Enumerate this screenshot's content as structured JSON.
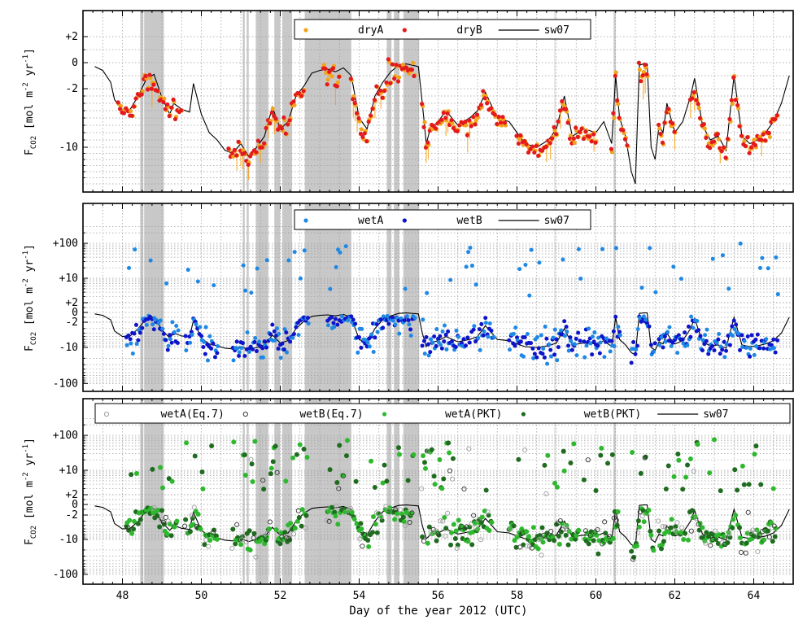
{
  "chart_data": {
    "type": "scatter",
    "xlabel": "Day of the year 2012 (UTC)",
    "xlim": [
      47.0,
      65.0
    ],
    "x_ticks": [
      48,
      50,
      52,
      54,
      56,
      58,
      60,
      62,
      64
    ],
    "shaded_intervals": [
      [
        48.45,
        48.53
      ],
      [
        48.55,
        49.05
      ],
      [
        51.05,
        51.1
      ],
      [
        51.15,
        51.2
      ],
      [
        51.38,
        51.7
      ],
      [
        51.85,
        52.0
      ],
      [
        52.05,
        52.3
      ],
      [
        52.62,
        53.8
      ],
      [
        54.7,
        54.82
      ],
      [
        54.88,
        55.02
      ],
      [
        55.12,
        55.52
      ],
      [
        58.95,
        58.97
      ],
      [
        60.45,
        60.5
      ]
    ],
    "panels": [
      {
        "name": "top",
        "ylabel_parts": [
          "F",
          "CO2",
          " [mol m",
          "-2",
          " yr",
          "-1",
          "]"
        ],
        "y_ticks": [
          {
            "v": 2,
            "label": "+2"
          },
          {
            "v": 0,
            "label": "0"
          },
          {
            "v": -2,
            "label": "-2"
          },
          {
            "v": -10,
            "label": "-10"
          }
        ],
        "legend": [
          {
            "label": "dryA",
            "kind": "dot",
            "color": "#f5a31a"
          },
          {
            "label": "dryB",
            "kind": "dot",
            "color": "#e31a1c"
          },
          {
            "label": "sw07",
            "kind": "line",
            "color": "#000000"
          }
        ]
      },
      {
        "name": "middle",
        "ylabel_parts": [
          "F",
          "CO2",
          " [mol m",
          "-2",
          " yr",
          "-1",
          "]"
        ],
        "y_ticks": [
          {
            "v": 100,
            "label": "+100"
          },
          {
            "v": 10,
            "label": "+10"
          },
          {
            "v": 2,
            "label": "+2"
          },
          {
            "v": 0,
            "label": "0"
          },
          {
            "v": -2,
            "label": "-2"
          },
          {
            "v": -10,
            "label": "-10"
          },
          {
            "v": -100,
            "label": "-100"
          }
        ],
        "legend": [
          {
            "label": "wetA",
            "kind": "dot",
            "color": "#1e88e5"
          },
          {
            "label": "wetB",
            "kind": "dot",
            "color": "#0d14c9"
          },
          {
            "label": "sw07",
            "kind": "line",
            "color": "#000000"
          }
        ]
      },
      {
        "name": "bottom",
        "ylabel_parts": [
          "F",
          "CO2",
          " [mol m",
          "-2",
          " yr",
          "-1",
          "]"
        ],
        "y_ticks": [
          {
            "v": 100,
            "label": "+100"
          },
          {
            "v": 10,
            "label": "+10"
          },
          {
            "v": 2,
            "label": "+2"
          },
          {
            "v": 0,
            "label": "0"
          },
          {
            "v": -2,
            "label": "-2"
          },
          {
            "v": -10,
            "label": "-10"
          },
          {
            "v": -100,
            "label": "-100"
          }
        ],
        "legend": [
          {
            "label": "wetA(Eq.7)",
            "kind": "ring",
            "color": "#9e9e9e"
          },
          {
            "label": "wetB(Eq.7)",
            "kind": "ring",
            "color": "#333333"
          },
          {
            "label": "wetA(PKT)",
            "kind": "dot",
            "color": "#2eb82e"
          },
          {
            "label": "wetB(PKT)",
            "kind": "dot",
            "color": "#1f6b1f"
          },
          {
            "label": "sw07",
            "kind": "line",
            "color": "#000000"
          }
        ]
      }
    ],
    "sw07": {
      "name": "sw07",
      "x": [
        47.3,
        47.5,
        47.7,
        47.8,
        48.0,
        48.2,
        48.4,
        48.6,
        48.8,
        49.0,
        49.2,
        49.3,
        49.5,
        49.7,
        49.8,
        50.0,
        50.2,
        50.4,
        50.6,
        50.8,
        51.0,
        51.2,
        51.4,
        51.6,
        51.8,
        52.0,
        52.2,
        52.4,
        52.6,
        52.8,
        53.0,
        53.2,
        53.4,
        53.6,
        53.8,
        54.0,
        54.2,
        54.4,
        54.6,
        54.8,
        55.0,
        55.2,
        55.5,
        55.6,
        55.7,
        55.8,
        56.0,
        56.2,
        56.5,
        56.8,
        57.0,
        57.2,
        57.5,
        57.8,
        58.0,
        58.2,
        58.5,
        58.8,
        59.0,
        59.2,
        59.4,
        59.7,
        60.0,
        60.2,
        60.4,
        60.5,
        60.6,
        60.75,
        60.9,
        61.0,
        61.1,
        61.2,
        61.3,
        61.4,
        61.5,
        61.6,
        61.7,
        61.8,
        61.9,
        62.0,
        62.2,
        62.4,
        62.5,
        62.7,
        62.9,
        63.1,
        63.3,
        63.5,
        63.7,
        63.9,
        64.1,
        64.3,
        64.5,
        64.7,
        64.9
      ],
      "y": [
        -0.3,
        -0.6,
        -1.5,
        -3.5,
        -5.0,
        -4.8,
        -3.0,
        -1.3,
        -0.9,
        -3.2,
        -5.5,
        -4.0,
        -4.8,
        -5.2,
        -1.6,
        -5.5,
        -8.0,
        -9.0,
        -10.5,
        -11.0,
        -9.5,
        -11.5,
        -10.0,
        -8.5,
        -4.5,
        -7.5,
        -6.5,
        -3.0,
        -1.8,
        -0.8,
        -0.6,
        -0.5,
        -0.7,
        -0.4,
        -1.0,
        -6.0,
        -7.5,
        -3.0,
        -1.5,
        -0.7,
        -0.2,
        -0.1,
        -0.3,
        -4.0,
        -9.5,
        -7.5,
        -6.5,
        -5.0,
        -7.0,
        -6.0,
        -5.0,
        -2.5,
        -6.0,
        -6.5,
        -8.0,
        -9.5,
        -10.0,
        -9.0,
        -7.5,
        -3.0,
        -8.5,
        -7.5,
        -8.0,
        -6.5,
        -9.5,
        -1.0,
        -6.0,
        -8.5,
        -14.0,
        -16.0,
        -0.2,
        -0.1,
        -0.1,
        -10.0,
        -12.0,
        -7.0,
        -8.0,
        -4.0,
        -6.0,
        -8.0,
        -6.5,
        -3.0,
        -1.2,
        -7.0,
        -9.0,
        -8.5,
        -10.5,
        -1.0,
        -8.5,
        -9.5,
        -9.0,
        -8.0,
        -6.5,
        -4.0,
        -1.0
      ]
    }
  }
}
